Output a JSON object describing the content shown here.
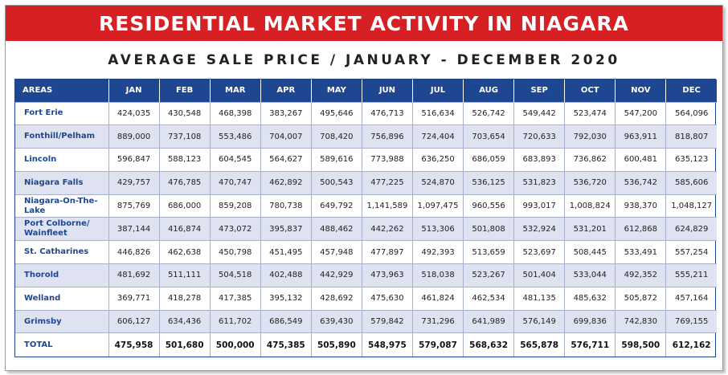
{
  "header": {
    "title": "RESIDENTIAL MARKET ACTIVITY IN NIAGARA",
    "subtitle": "AVERAGE SALE PRICE / JANUARY - DECEMBER 2020"
  },
  "colors": {
    "banner": "#d62024",
    "header_row": "#1f4690",
    "alt_row": "#dfe3f1",
    "area_text": "#1f4690"
  },
  "table": {
    "columns": [
      "AREAS",
      "JAN",
      "FEB",
      "MAR",
      "APR",
      "MAY",
      "JUN",
      "JUL",
      "AUG",
      "SEP",
      "OCT",
      "NOV",
      "DEC"
    ],
    "rows": [
      {
        "area": "Fort Erie",
        "values": [
          "424,035",
          "430,548",
          "468,398",
          "383,267",
          "495,646",
          "476,713",
          "516,634",
          "526,742",
          "549,442",
          "523,474",
          "547,200",
          "564,096"
        ]
      },
      {
        "area": "Fonthill/Pelham",
        "values": [
          "889,000",
          "737,108",
          "553,486",
          "704,007",
          "708,420",
          "756,896",
          "724,404",
          "703,654",
          "720,633",
          "792,030",
          "963,911",
          "818,807"
        ]
      },
      {
        "area": "Lincoln",
        "values": [
          "596,847",
          "588,123",
          "604,545",
          "564,627",
          "589,616",
          "773,988",
          "636,250",
          "686,059",
          "683,893",
          "736,862",
          "600,481",
          "635,123"
        ]
      },
      {
        "area": "Niagara Falls",
        "values": [
          "429,757",
          "476,785",
          "470,747",
          "462,892",
          "500,543",
          "477,225",
          "524,870",
          "536,125",
          "531,823",
          "536,720",
          "536,742",
          "585,606"
        ]
      },
      {
        "area": "Niagara-On-The-Lake",
        "values": [
          "875,769",
          "686,000",
          "859,208",
          "780,738",
          "649,792",
          "1,141,589",
          "1,097,475",
          "960,556",
          "993,017",
          "1,008,824",
          "938,370",
          "1,048,127"
        ]
      },
      {
        "area": "Port Colborne/ Wainfleet",
        "values": [
          "387,144",
          "416,874",
          "473,072",
          "395,837",
          "488,462",
          "442,262",
          "513,306",
          "501,808",
          "532,924",
          "531,201",
          "612,868",
          "624,829"
        ]
      },
      {
        "area": "St. Catharines",
        "values": [
          "446,826",
          "462,638",
          "450,798",
          "451,495",
          "457,948",
          "477,897",
          "492,393",
          "513,659",
          "523,697",
          "508,445",
          "533,491",
          "557,254"
        ]
      },
      {
        "area": "Thorold",
        "values": [
          "481,692",
          "511,111",
          "504,518",
          "402,488",
          "442,929",
          "473,963",
          "518,038",
          "523,267",
          "501,404",
          "533,044",
          "492,352",
          "555,211"
        ]
      },
      {
        "area": "Welland",
        "values": [
          "369,771",
          "418,278",
          "417,385",
          "395,132",
          "428,692",
          "475,630",
          "461,824",
          "462,534",
          "481,135",
          "485,632",
          "505,872",
          "457,164"
        ]
      },
      {
        "area": "Grimsby",
        "values": [
          "606,127",
          "634,436",
          "611,702",
          "686,549",
          "639,430",
          "579,842",
          "731,296",
          "641,989",
          "576,149",
          "699,836",
          "742,830",
          "769,155"
        ]
      }
    ],
    "total": {
      "area": "TOTAL",
      "values": [
        "475,958",
        "501,680",
        "500,000",
        "475,385",
        "505,890",
        "548,975",
        "579,087",
        "568,632",
        "565,878",
        "576,711",
        "598,500",
        "612,162"
      ]
    }
  }
}
